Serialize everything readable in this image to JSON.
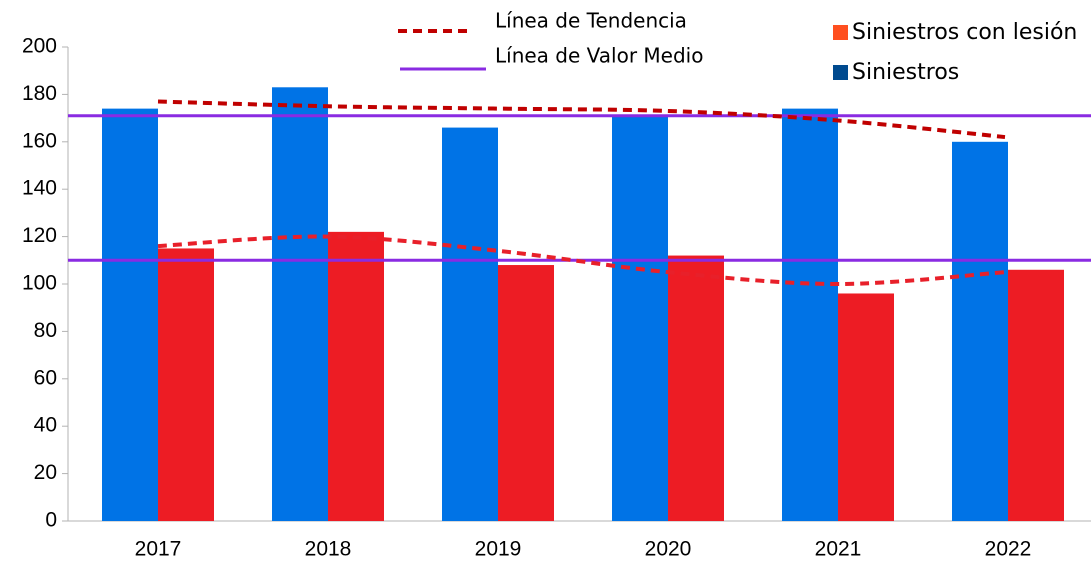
{
  "chart_data": {
    "type": "bar",
    "categories": [
      "2017",
      "2018",
      "2019",
      "2020",
      "2021",
      "2022"
    ],
    "series": [
      {
        "name": "Siniestros",
        "color": "#0073e6",
        "legend_color": "#004a8f",
        "values": [
          174,
          183,
          166,
          171,
          174,
          160
        ],
        "trend": [
          177,
          175,
          174,
          173,
          169,
          162
        ],
        "mean": 171
      },
      {
        "name": "Siniestros con lesión",
        "color": "#ed1c24",
        "legend_color": "#ff4f1f",
        "values": [
          115,
          122,
          108,
          112,
          96,
          106
        ],
        "trend": [
          116,
          120,
          114,
          105,
          100,
          105
        ],
        "mean": 110
      }
    ],
    "trend_label": "Línea de Tendencia",
    "trend_color": "#c00000",
    "trend_color_low": "#e8202a",
    "mean_label": "Línea de Valor Medio",
    "mean_color": "#8a2be2",
    "ylim": [
      0,
      200
    ],
    "yticks": [
      0,
      20,
      40,
      60,
      80,
      100,
      120,
      140,
      160,
      180,
      200
    ],
    "grid": false
  }
}
